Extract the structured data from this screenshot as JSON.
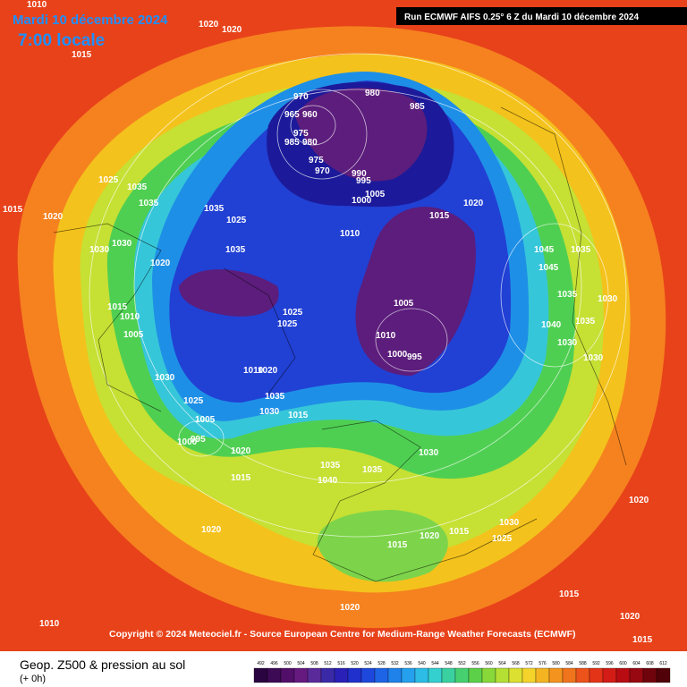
{
  "header": {
    "date": "Mardi 10 décembre 2024",
    "time": "7:00 locale",
    "run": "Run ECMWF AIFS 0.25° 6 Z du Mardi 10 décembre 2024"
  },
  "footer": {
    "copyright": "Copyright © 2024 Meteociel.fr - Source European Centre for Medium-Range Weather Forecasts (ECMWF)",
    "legend_title": "Geop. Z500 & pression au sol",
    "legend_subtitle": "(+ 0h)"
  },
  "legend": {
    "ticks": [
      492,
      496,
      500,
      504,
      508,
      512,
      516,
      520,
      524,
      528,
      532,
      536,
      540,
      544,
      548,
      552,
      556,
      560,
      564,
      568,
      572,
      576,
      580,
      584,
      588,
      592,
      596,
      600,
      604,
      608,
      612
    ]
  },
  "pressure_labels": [
    "1010",
    "1020",
    "1020",
    "1015",
    "970",
    "980",
    "985",
    "965",
    "960",
    "975",
    "985",
    "980",
    "975",
    "970",
    "990",
    "995",
    "1000",
    "1005",
    "1015",
    "1020",
    "1025",
    "1035",
    "1035",
    "1035",
    "1025",
    "1015",
    "1020",
    "1030",
    "1030",
    "1035",
    "1020",
    "1015",
    "1010",
    "1005",
    "1010",
    "1025",
    "1025",
    "1030",
    "1045",
    "1045",
    "1035",
    "1035",
    "1030",
    "1040",
    "1035",
    "1030",
    "1030",
    "1010",
    "1000",
    "995",
    "1005",
    "1010",
    "1020",
    "1035",
    "1030",
    "1015",
    "1025",
    "1005",
    "1000",
    "995",
    "1020",
    "1015",
    "1035",
    "1040",
    "1035",
    "1030",
    "1030",
    "1020",
    "1015",
    "1020",
    "1015",
    "1025",
    "1020",
    "1020",
    "1015",
    "1010",
    "1015",
    "1020"
  ]
}
